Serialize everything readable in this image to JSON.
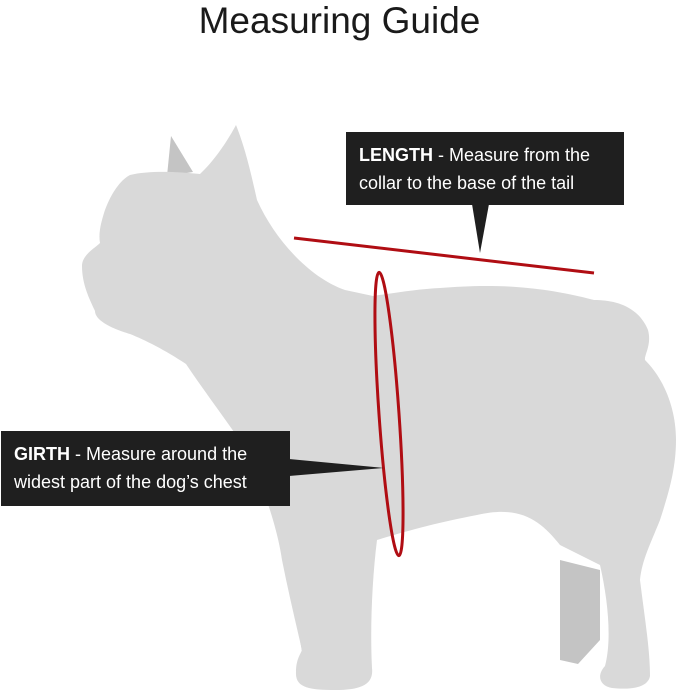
{
  "title": "Measuring Guide",
  "length": {
    "label": "LENGTH",
    "text_line1": " - Measure from the",
    "text_line2": "collar to the base of the tail"
  },
  "girth": {
    "label": "GIRTH",
    "text_line1": " - Measure around the",
    "text_line2": "widest part of the dog’s chest"
  },
  "colors": {
    "silhouette": "#d9d9d9",
    "silhouette_far": "#c4c4c4",
    "measure_line": "#b00d13",
    "callout": "#1f1f1f"
  }
}
